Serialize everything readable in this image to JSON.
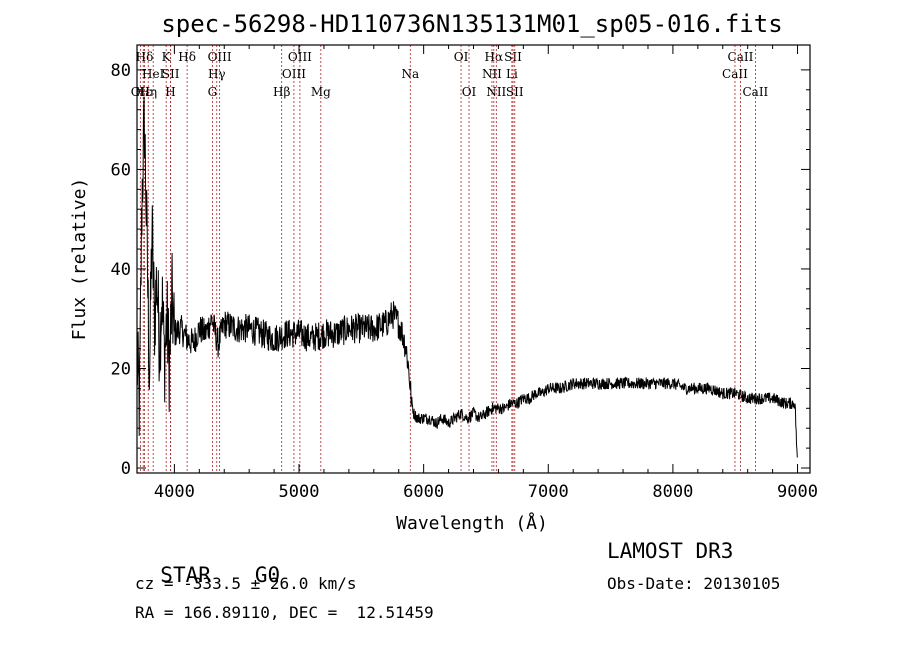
{
  "chart_data": {
    "type": "line",
    "title": "spec-56298-HD110736N135131M01_sp05-016.fits",
    "xlabel": "Wavelength (Å)",
    "ylabel": "Flux (relative)",
    "xlim": [
      3700,
      9100
    ],
    "ylim": [
      -1,
      85
    ],
    "x_ticks": [
      4000,
      5000,
      6000,
      7000,
      8000,
      9000
    ],
    "y_ticks": [
      0,
      20,
      40,
      60,
      80
    ],
    "grid": false,
    "series": [
      {
        "values_wavelength": [
          3700,
          3720,
          3740,
          3760,
          3780,
          3800,
          3820,
          3840,
          3860,
          3880,
          3900,
          3920,
          3940,
          3960,
          3980,
          4000,
          4050,
          4100,
          4150,
          4200,
          4250,
          4300,
          4350,
          4400,
          4500,
          4600,
          4700,
          4800,
          4900,
          5000,
          5100,
          5200,
          5300,
          5400,
          5500,
          5600,
          5700,
          5750,
          5800,
          5830,
          5860,
          5880,
          5900,
          5920,
          5950,
          6000,
          6050,
          6100,
          6150,
          6200,
          6250,
          6300,
          6350,
          6400,
          6450,
          6500,
          6550,
          6600,
          6650,
          6700,
          6750,
          6800,
          6850,
          6900,
          6950,
          7000,
          7100,
          7200,
          7300,
          7400,
          7500,
          7600,
          7700,
          7800,
          7900,
          8000,
          8100,
          8200,
          8300,
          8400,
          8500,
          8600,
          8700,
          8800,
          8900,
          8980,
          9000
        ],
        "values_flux": [
          22,
          12,
          55,
          70,
          45,
          18,
          48,
          30,
          38,
          25,
          35,
          22,
          30,
          20,
          34,
          27,
          28,
          26,
          25,
          28,
          27,
          30,
          25,
          29,
          28,
          28,
          27,
          26,
          27,
          27,
          26,
          27,
          27,
          28,
          28,
          28,
          29,
          31,
          29,
          27,
          24,
          20,
          14,
          11,
          10,
          10,
          10,
          9,
          10,
          9,
          10,
          11,
          10,
          11,
          10,
          11,
          12,
          12,
          12,
          13,
          13,
          14,
          14,
          15,
          15,
          16,
          16,
          17,
          17,
          17,
          17,
          17,
          17,
          17,
          17,
          17,
          16,
          16,
          16,
          15,
          15,
          14,
          14,
          14,
          13,
          13,
          0
        ]
      }
    ],
    "line_markers": [
      {
        "label": "OII",
        "wavelength": 3727,
        "row": 3
      },
      {
        "label": "Hε",
        "wavelength": 3750,
        "row": 3
      },
      {
        "label": "Hη",
        "wavelength": 3790,
        "row": 3
      },
      {
        "label": "Hδ",
        "wavelength": 3760,
        "row": 1
      },
      {
        "label": "HeI",
        "wavelength": 3830,
        "row": 2
      },
      {
        "label": "K",
        "wavelength": 3934,
        "row": 1
      },
      {
        "label": "SII",
        "wavelength": 3970,
        "row": 2
      },
      {
        "label": "H",
        "wavelength": 3969,
        "row": 3
      },
      {
        "label": "Hδ",
        "wavelength": 4102,
        "row": 1
      },
      {
        "label": "OIII",
        "wavelength": 4363,
        "row": 1
      },
      {
        "label": "Hγ",
        "wavelength": 4340,
        "row": 2
      },
      {
        "label": "G",
        "wavelength": 4305,
        "row": 3
      },
      {
        "label": "OIII",
        "wavelength": 5007,
        "row": 1
      },
      {
        "label": "OIII",
        "wavelength": 4959,
        "row": 2
      },
      {
        "label": "Hβ",
        "wavelength": 4861,
        "row": 3
      },
      {
        "label": "Mg",
        "wavelength": 5175,
        "row": 3
      },
      {
        "label": "Na",
        "wavelength": 5893,
        "row": 2
      },
      {
        "label": "OI",
        "wavelength": 6300,
        "row": 1
      },
      {
        "label": "OI",
        "wavelength": 6364,
        "row": 3
      },
      {
        "label": "Hα",
        "wavelength": 6563,
        "row": 1
      },
      {
        "label": "SII",
        "wavelength": 6717,
        "row": 1
      },
      {
        "label": "NII",
        "wavelength": 6548,
        "row": 2
      },
      {
        "label": "Li",
        "wavelength": 6708,
        "row": 2
      },
      {
        "label": "NII",
        "wavelength": 6583,
        "row": 3
      },
      {
        "label": "SII",
        "wavelength": 6731,
        "row": 3
      },
      {
        "label": "CaII",
        "wavelength": 8542,
        "row": 1
      },
      {
        "label": "CaII",
        "wavelength": 8498,
        "row": 2
      },
      {
        "label": "CaII",
        "wavelength": 8662,
        "row": 3
      }
    ],
    "marker_color": "#b22222"
  },
  "info": {
    "class_label": "STAR",
    "subclass_label": "G0",
    "survey": "LAMOST DR3",
    "cz_text": "cz = -333.5 ± 26.0 km/s",
    "obs_date_text": "Obs-Date: 20130105",
    "coords_text": "RA = 166.89110, DEC =  12.51459"
  }
}
